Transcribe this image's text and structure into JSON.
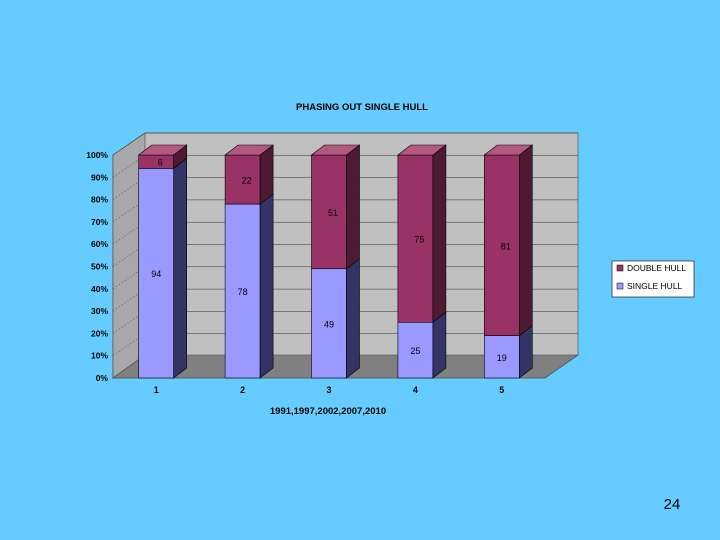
{
  "slide": {
    "page_number": "24",
    "colors": {
      "background": "#66ccff",
      "single_hull": "#9999ff",
      "double_hull": "#993366",
      "plot_wall": "#c0c0c0",
      "floor": "#808080"
    }
  },
  "chart_data": {
    "type": "bar",
    "stacked": "percent",
    "three_d": true,
    "title": "PHASING OUT SINGLE HULL",
    "xlabel": "1991,1997,2002,2007,2010",
    "ylabel": "",
    "categories": [
      "1",
      "2",
      "3",
      "4",
      "5"
    ],
    "y_ticks": [
      "0%",
      "10%",
      "20%",
      "30%",
      "40%",
      "50%",
      "60%",
      "70%",
      "80%",
      "90%",
      "100%"
    ],
    "ylim": [
      0,
      100
    ],
    "grid": true,
    "legend_position": "right",
    "series": [
      {
        "name": "SINGLE HULL",
        "values": [
          94,
          78,
          49,
          25,
          19
        ],
        "labels": [
          "94",
          "78",
          "49",
          "25",
          "19"
        ],
        "color": "#9999ff"
      },
      {
        "name": "DOUBLE HULL",
        "values": [
          6,
          22,
          51,
          75,
          81
        ],
        "labels": [
          "6",
          "22",
          "51",
          "75",
          "81"
        ],
        "color": "#993366"
      }
    ],
    "legend": [
      "DOUBLE HULL",
      "SINGLE HULL"
    ]
  }
}
